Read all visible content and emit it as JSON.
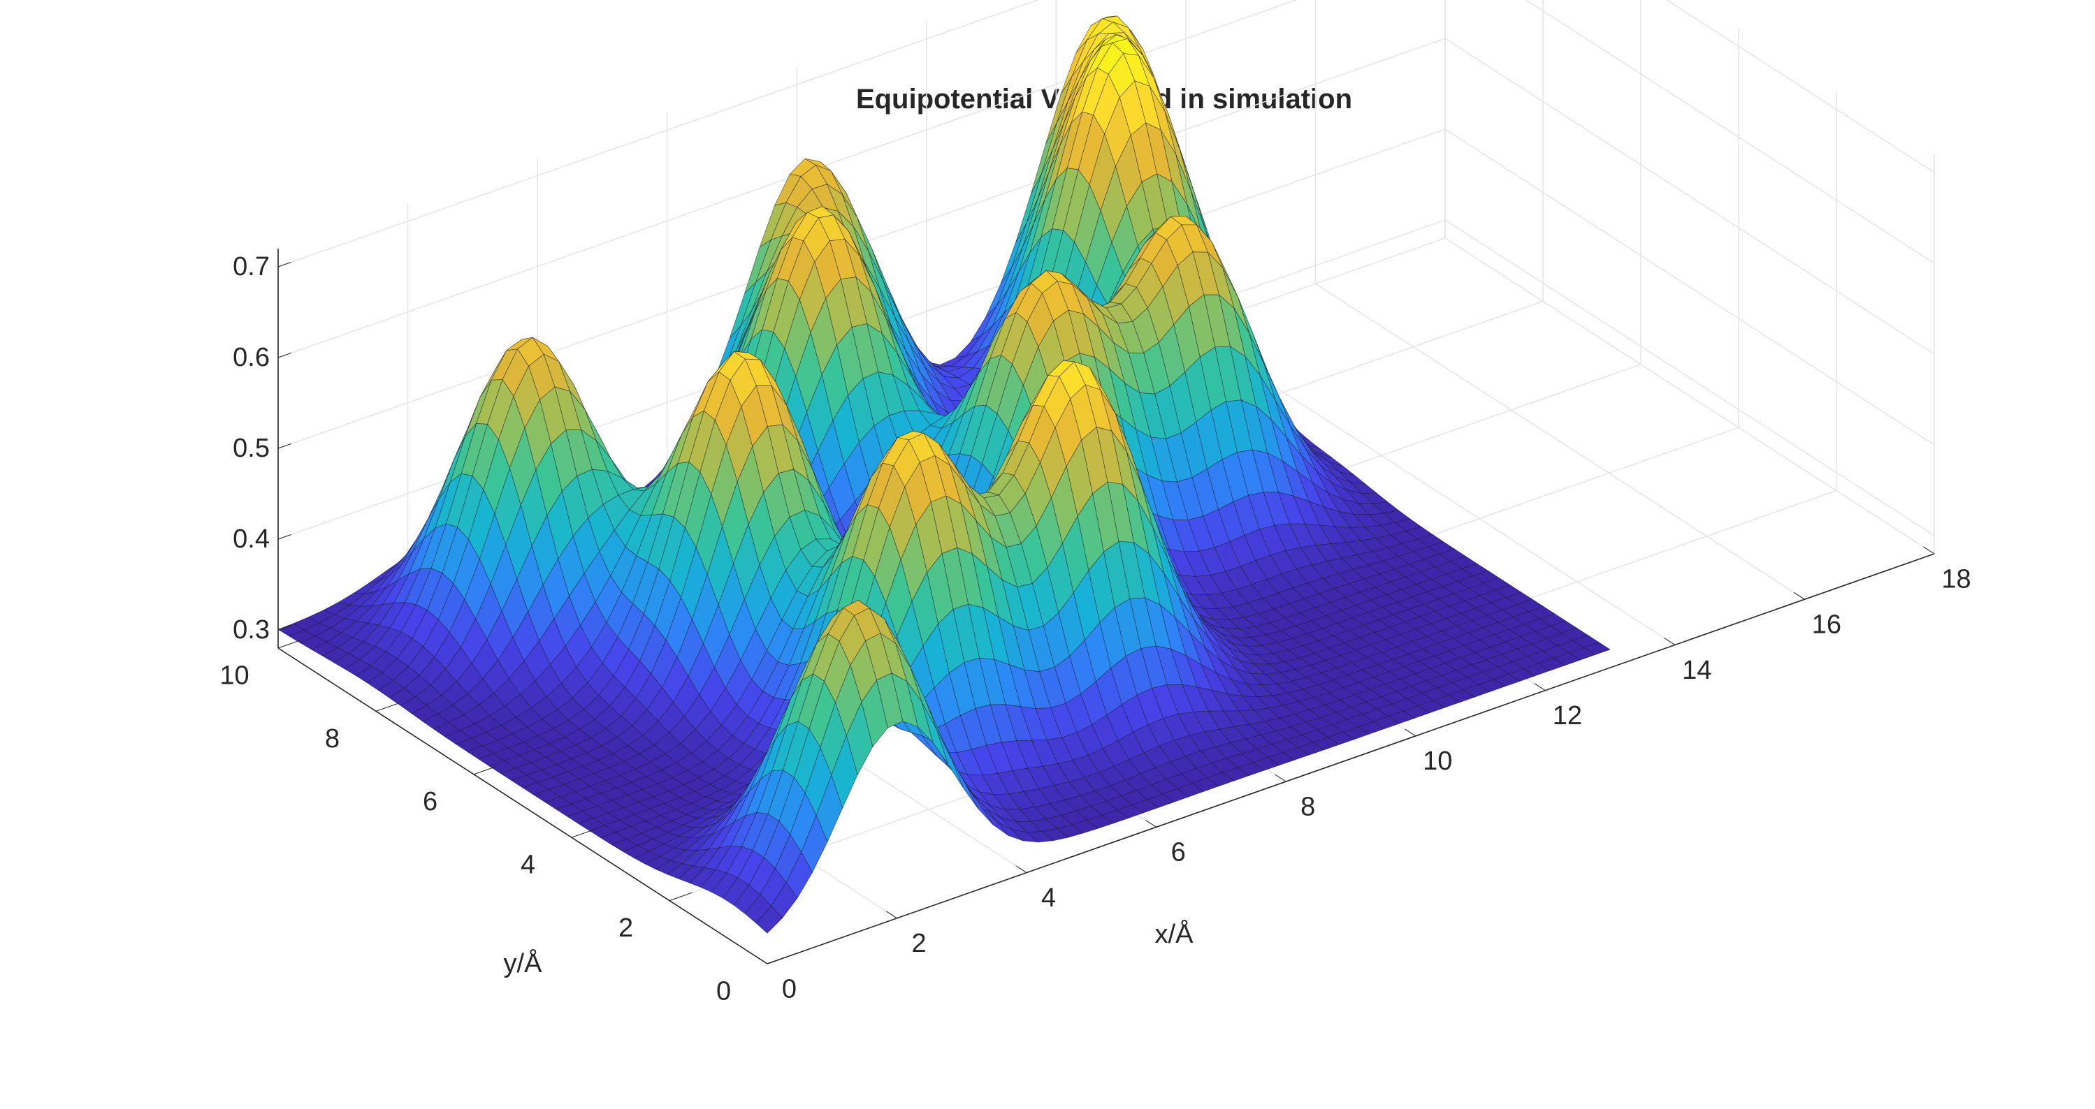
{
  "chart_data": {
    "type": "surface",
    "title": "Equipotential V=0, used in simulation",
    "xlabel": "x/Å",
    "ylabel": "y/Å",
    "zlabel": "",
    "xlim": [
      0,
      18
    ],
    "ylim": [
      0,
      10
    ],
    "zlim": [
      0.28,
      0.72
    ],
    "surface_extent": {
      "x": [
        0,
        13
      ],
      "y": [
        0,
        10
      ]
    },
    "x_ticks": [
      "0",
      "2",
      "4",
      "6",
      "8",
      "10",
      "12",
      "14",
      "16",
      "18"
    ],
    "y_ticks": [
      "0",
      "2",
      "4",
      "6",
      "8",
      "10"
    ],
    "z_ticks": [
      "0.3",
      "0.4",
      "0.5",
      "0.6",
      "0.7"
    ],
    "grid": true,
    "colormap": "parula",
    "colormap_colors": [
      "#3e26a8",
      "#4744ea",
      "#2e87f7",
      "#16b4d4",
      "#3bc496",
      "#99bf5a",
      "#e4b636",
      "#fddd2c",
      "#f9fb15"
    ],
    "peaks": [
      {
        "x": 2.0,
        "y": 0.8,
        "z": 0.6
      },
      {
        "x": 4.5,
        "y": 3.0,
        "z": 0.64
      },
      {
        "x": 7.0,
        "y": 3.0,
        "z": 0.66
      },
      {
        "x": 4.0,
        "y": 5.8,
        "z": 0.65
      },
      {
        "x": 8.5,
        "y": 5.6,
        "z": 0.62
      },
      {
        "x": 2.5,
        "y": 8.2,
        "z": 0.62
      },
      {
        "x": 7.0,
        "y": 8.2,
        "z": 0.63
      },
      {
        "x": 10.8,
        "y": 5.8,
        "z": 0.62
      },
      {
        "x": 8.2,
        "y": 10.0,
        "z": 0.6
      },
      {
        "x": 12.8,
        "y": 10.0,
        "z": 0.62
      },
      {
        "x": 11.8,
        "y": 8.4,
        "z": 0.66
      }
    ]
  }
}
